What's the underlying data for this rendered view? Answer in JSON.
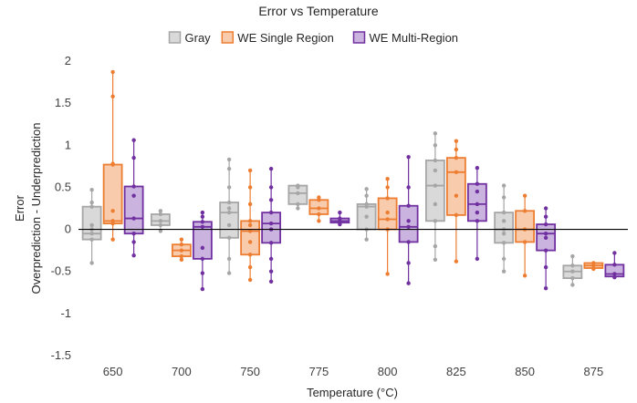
{
  "chart_data": {
    "type": "box",
    "title": "Error vs Temperature",
    "xlabel": "Temperature (°C)",
    "ylabel_lines": [
      "Error",
      "Overprediction - Underprediction"
    ],
    "ylim": [
      -1.5,
      2
    ],
    "yticks": [
      -1.5,
      -1,
      -0.5,
      0,
      0.5,
      1,
      1.5,
      2
    ],
    "ytick_labels": [
      "-1.5",
      "-1",
      "-0.5",
      "0",
      "0.5",
      "1",
      "1.5",
      "2"
    ],
    "categories": [
      "650",
      "700",
      "750",
      "775",
      "800",
      "825",
      "850",
      "875"
    ],
    "grid": false,
    "legend_position": "top",
    "series": [
      {
        "name": "Gray",
        "stroke": "#a6a6a6",
        "fill": "#d9d9d9",
        "boxes": [
          {
            "min": -0.4,
            "q1": -0.12,
            "median": -0.05,
            "q3": 0.27,
            "max": 0.47,
            "points": [
              -0.4,
              -0.12,
              -0.05,
              0.0,
              0.05,
              0.27,
              0.32,
              0.47
            ]
          },
          {
            "min": -0.02,
            "q1": 0.05,
            "median": 0.1,
            "q3": 0.18,
            "max": 0.22,
            "points": [
              -0.02,
              0.05,
              0.1,
              0.18,
              0.22
            ]
          },
          {
            "min": -0.52,
            "q1": -0.1,
            "median": 0.2,
            "q3": 0.32,
            "max": 0.83,
            "points": [
              -0.52,
              -0.35,
              -0.1,
              0.05,
              0.2,
              0.25,
              0.32,
              0.5,
              0.72,
              0.83
            ]
          },
          {
            "min": 0.25,
            "q1": 0.3,
            "median": 0.43,
            "q3": 0.52,
            "max": 0.52,
            "points": [
              0.25,
              0.3,
              0.43,
              0.5,
              0.52
            ]
          },
          {
            "min": -0.12,
            "q1": 0.0,
            "median": 0.27,
            "q3": 0.3,
            "max": 0.48,
            "points": [
              -0.12,
              0.0,
              0.15,
              0.27,
              0.3,
              0.4,
              0.48
            ]
          },
          {
            "min": -0.36,
            "q1": 0.1,
            "median": 0.52,
            "q3": 0.82,
            "max": 1.14,
            "points": [
              -0.36,
              -0.2,
              0.1,
              0.3,
              0.52,
              0.7,
              0.82,
              1.0,
              1.14
            ]
          },
          {
            "min": -0.5,
            "q1": -0.16,
            "median": 0.0,
            "q3": 0.2,
            "max": 0.52,
            "points": [
              -0.5,
              -0.35,
              -0.16,
              -0.05,
              0.0,
              0.1,
              0.2,
              0.38,
              0.52
            ]
          },
          {
            "min": -0.66,
            "q1": -0.58,
            "median": -0.5,
            "q3": -0.43,
            "max": -0.32,
            "points": [
              -0.66,
              -0.58,
              -0.5,
              -0.43,
              -0.32
            ]
          }
        ]
      },
      {
        "name": "WE Single Region",
        "stroke": "#ed7d31",
        "fill": "#f8cbad",
        "boxes": [
          {
            "min": -0.12,
            "q1": 0.07,
            "median": 0.1,
            "q3": 0.77,
            "max": 1.87,
            "points": [
              -0.12,
              0.07,
              0.1,
              0.22,
              0.77,
              0.78,
              1.58,
              1.87
            ]
          },
          {
            "min": -0.36,
            "q1": -0.32,
            "median": -0.25,
            "q3": -0.18,
            "max": -0.12,
            "points": [
              -0.36,
              -0.32,
              -0.25,
              -0.18,
              -0.12
            ]
          },
          {
            "min": -0.6,
            "q1": -0.3,
            "median": -0.02,
            "q3": 0.1,
            "max": 0.7,
            "points": [
              -0.6,
              -0.45,
              -0.3,
              -0.15,
              -0.02,
              0.05,
              0.1,
              0.3,
              0.5,
              0.7
            ]
          },
          {
            "min": 0.1,
            "q1": 0.18,
            "median": 0.25,
            "q3": 0.35,
            "max": 0.38,
            "points": [
              0.1,
              0.18,
              0.25,
              0.35,
              0.38
            ]
          },
          {
            "min": -0.53,
            "q1": 0.0,
            "median": 0.12,
            "q3": 0.37,
            "max": 0.6,
            "points": [
              -0.53,
              0.0,
              0.12,
              0.2,
              0.37,
              0.5,
              0.6
            ]
          },
          {
            "min": -0.38,
            "q1": 0.17,
            "median": 0.68,
            "q3": 0.85,
            "max": 1.05,
            "points": [
              -0.38,
              0.17,
              0.4,
              0.68,
              0.85,
              0.95,
              1.05
            ]
          },
          {
            "min": -0.55,
            "q1": -0.15,
            "median": 0.0,
            "q3": 0.22,
            "max": 0.4,
            "points": [
              -0.55,
              -0.15,
              0.0,
              0.22,
              0.4
            ]
          },
          {
            "min": -0.47,
            "q1": -0.46,
            "median": -0.43,
            "q3": -0.4,
            "max": -0.4,
            "points": [
              -0.47,
              -0.43,
              -0.4
            ]
          }
        ]
      },
      {
        "name": "WE Multi-Region",
        "stroke": "#7030a0",
        "fill": "#cbb3e0",
        "boxes": [
          {
            "min": -0.31,
            "q1": -0.05,
            "median": 0.13,
            "q3": 0.51,
            "max": 1.06,
            "points": [
              -0.31,
              -0.15,
              -0.05,
              0.13,
              0.4,
              0.51,
              0.85,
              1.06
            ]
          },
          {
            "min": -0.71,
            "q1": -0.35,
            "median": 0.03,
            "q3": 0.09,
            "max": 0.2,
            "points": [
              -0.71,
              -0.52,
              -0.35,
              -0.22,
              0.03,
              0.09,
              0.15,
              0.2
            ]
          },
          {
            "min": -0.62,
            "q1": -0.16,
            "median": 0.07,
            "q3": 0.2,
            "max": 0.72,
            "points": [
              -0.62,
              -0.5,
              -0.35,
              -0.16,
              0.0,
              0.07,
              0.2,
              0.35,
              0.5,
              0.72
            ]
          },
          {
            "min": 0.06,
            "q1": 0.08,
            "median": 0.1,
            "q3": 0.13,
            "max": 0.2,
            "points": [
              0.06,
              0.08,
              0.1,
              0.13,
              0.2
            ]
          },
          {
            "min": -0.64,
            "q1": -0.15,
            "median": 0.03,
            "q3": 0.28,
            "max": 0.86,
            "points": [
              -0.64,
              -0.4,
              -0.15,
              0.03,
              0.1,
              0.28,
              0.5,
              0.86
            ]
          },
          {
            "min": -0.35,
            "q1": 0.1,
            "median": 0.3,
            "q3": 0.54,
            "max": 0.73,
            "points": [
              -0.35,
              0.1,
              0.2,
              0.3,
              0.45,
              0.54,
              0.73
            ]
          },
          {
            "min": -0.7,
            "q1": -0.25,
            "median": -0.05,
            "q3": 0.06,
            "max": 0.25,
            "points": [
              -0.7,
              -0.45,
              -0.25,
              -0.1,
              -0.05,
              0.06,
              0.15,
              0.25
            ]
          },
          {
            "min": -0.57,
            "q1": -0.56,
            "median": -0.53,
            "q3": -0.42,
            "max": -0.28,
            "points": [
              -0.57,
              -0.53,
              -0.42,
              -0.28
            ]
          }
        ]
      }
    ]
  }
}
